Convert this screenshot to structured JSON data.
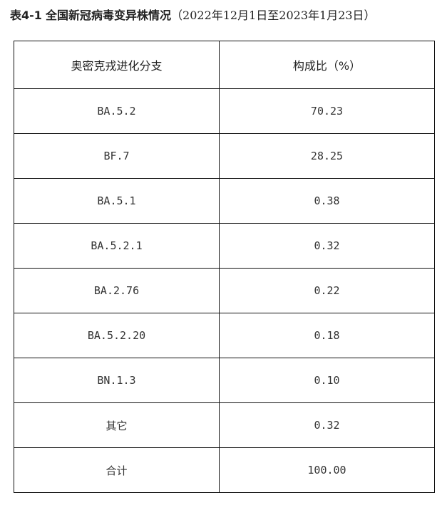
{
  "title": {
    "label": "表4-1",
    "text": "全国新冠病毒变异株情况",
    "range": "（2022年12月1日至2023年1月23日）"
  },
  "table": {
    "headers": [
      "奥密克戎进化分支",
      "构成比（%）"
    ],
    "rows": [
      [
        "BA.5.2",
        "70.23"
      ],
      [
        "BF.7",
        "28.25"
      ],
      [
        "BA.5.1",
        "0.38"
      ],
      [
        "BA.5.2.1",
        "0.32"
      ],
      [
        "BA.2.76",
        "0.22"
      ],
      [
        "BA.5.2.20",
        "0.18"
      ],
      [
        "BN.1.3",
        "0.10"
      ],
      [
        "其它",
        "0.32"
      ],
      [
        "合计",
        "100.00"
      ]
    ]
  }
}
